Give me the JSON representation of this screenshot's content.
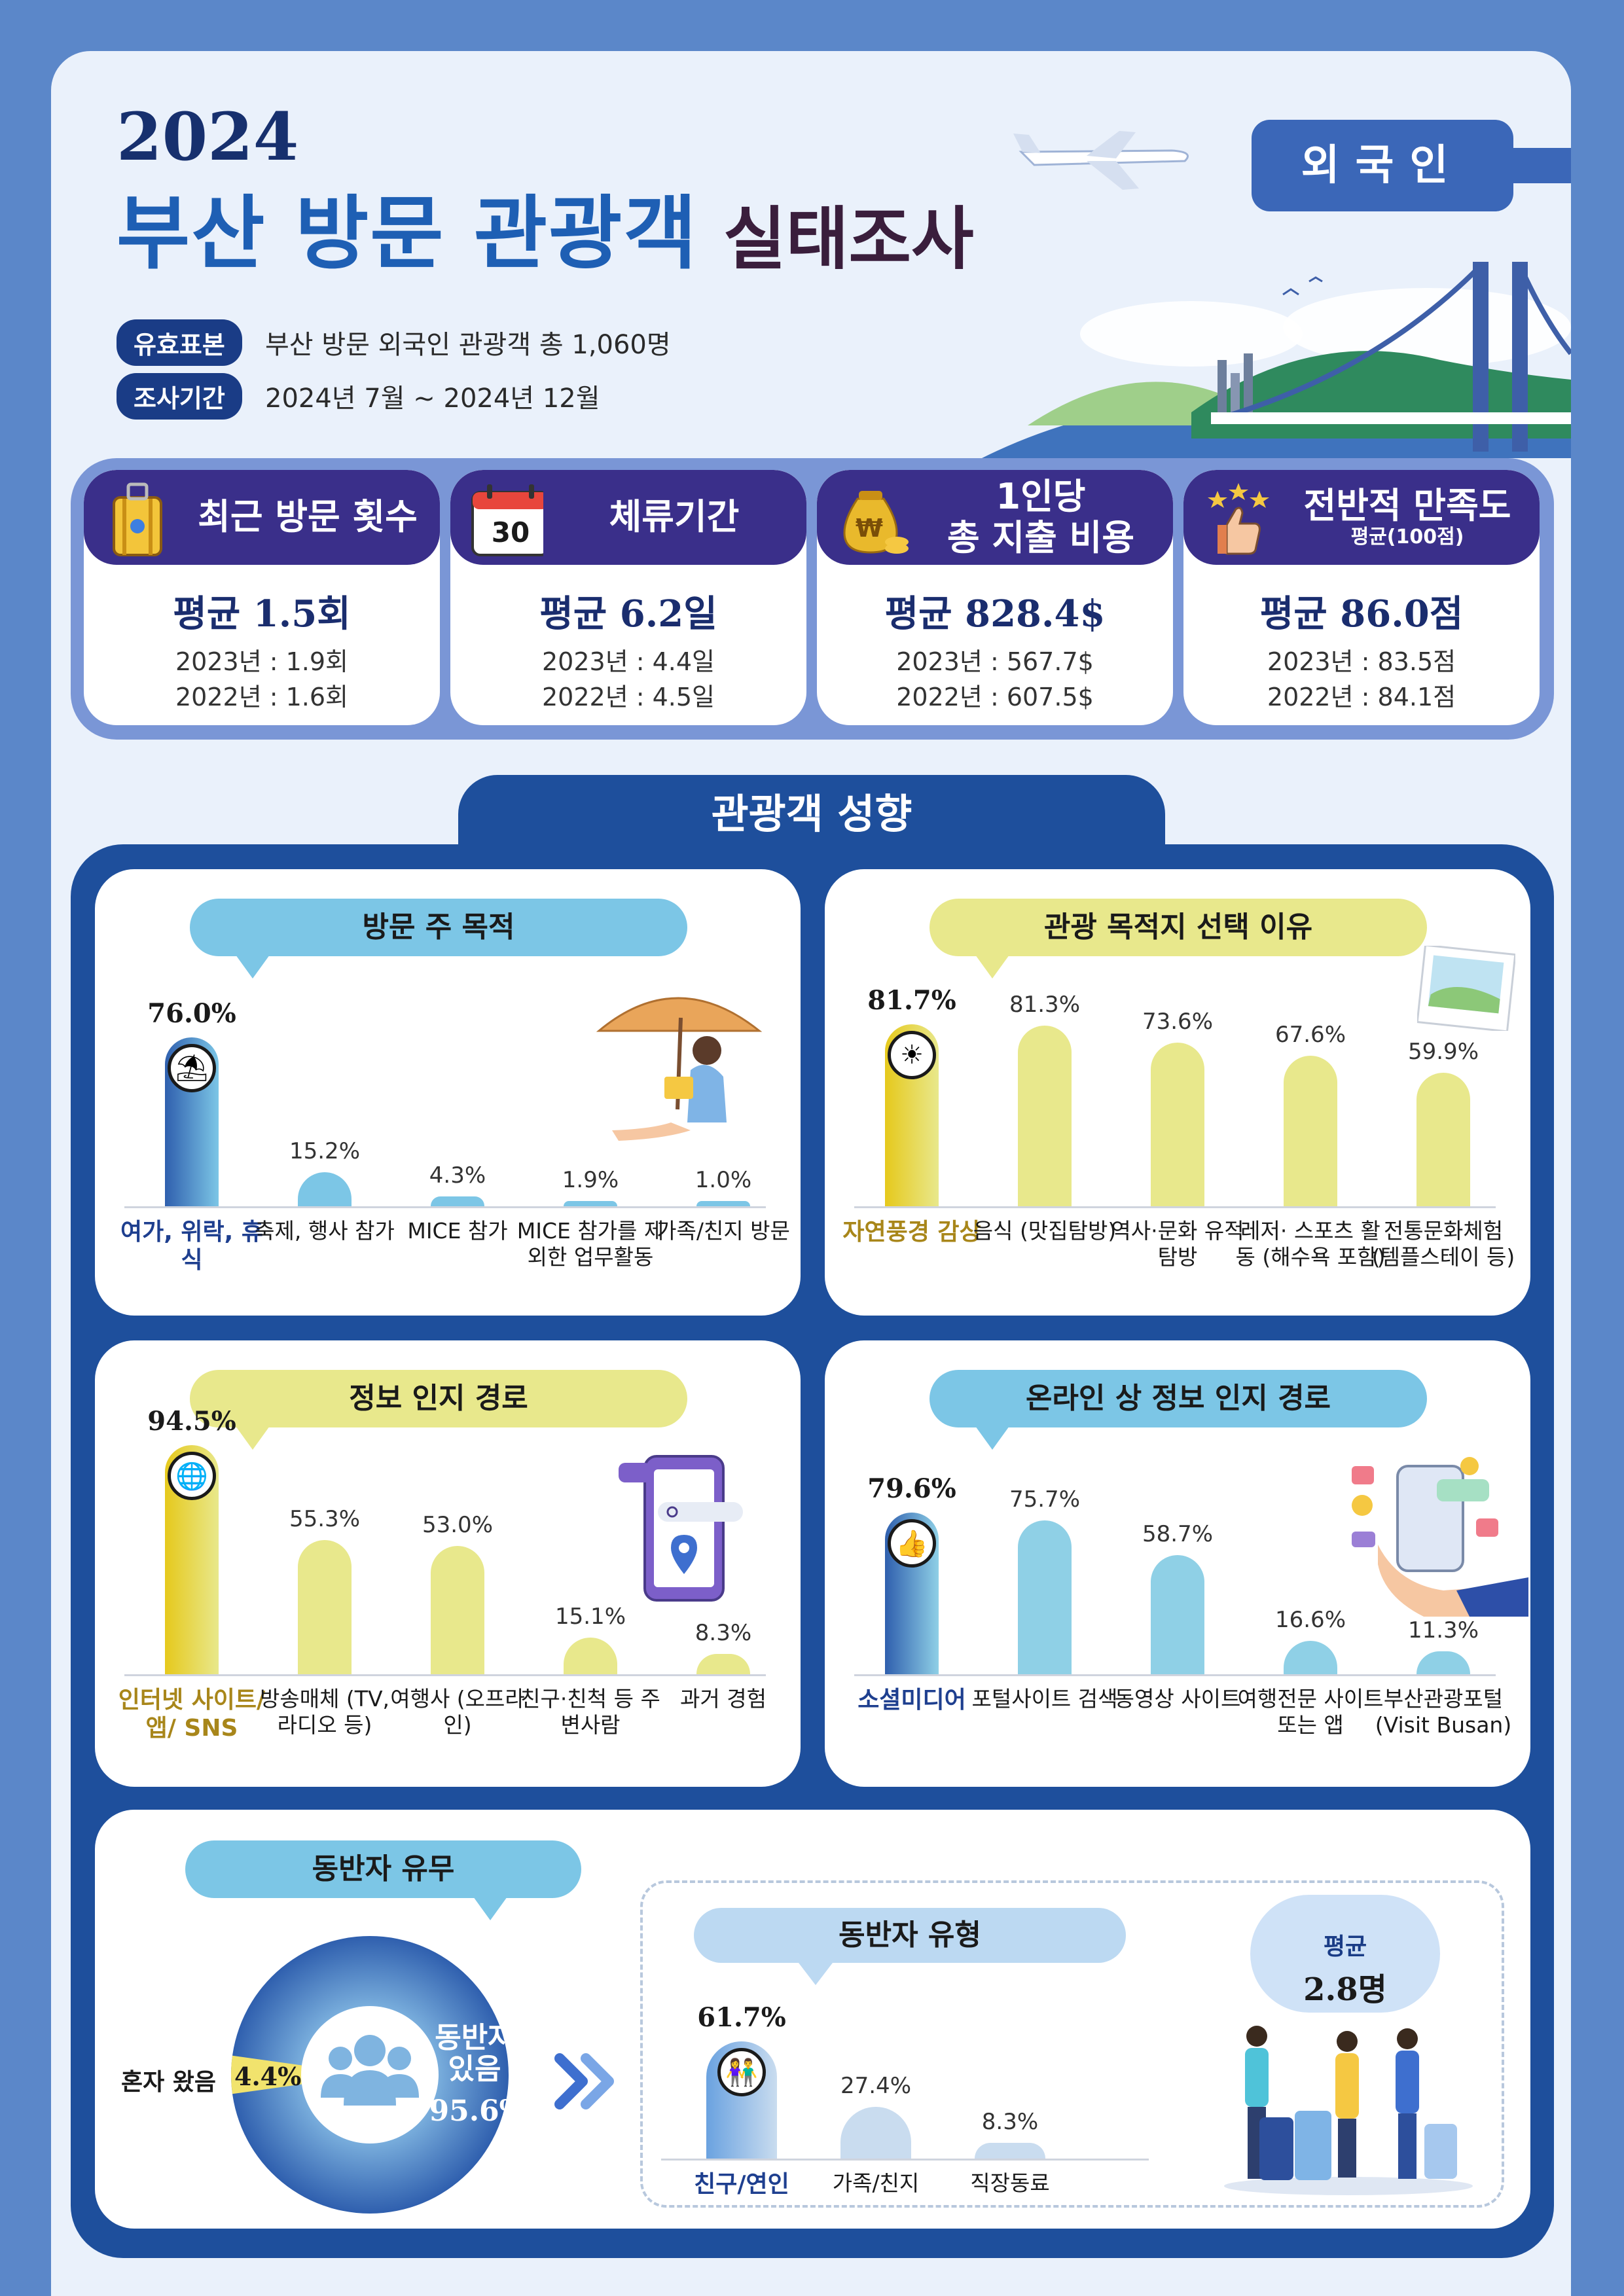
{
  "header": {
    "year": "2024",
    "title_main": "부산 방문 관광객",
    "title_sub": "실태조사",
    "sample_label": "유효표본",
    "sample_text": "부산 방문 외국인 관광객 총 1,060명",
    "period_label": "조사기간",
    "period_text": "2024년 7월 ~ 2024년 12월",
    "badge": "외국인"
  },
  "stats": [
    {
      "label": "최근 방문 횟수",
      "sublabel": "",
      "avg": "평균  1.5회",
      "prev1": "2023년 : 1.9회",
      "prev2": "2022년 : 1.6회",
      "icon": "suitcase-icon"
    },
    {
      "label": "체류기간",
      "sublabel": "",
      "avg": "평균  6.2일",
      "prev1": "2023년 : 4.4일",
      "prev2": "2022년 : 4.5일",
      "icon": "calendar-icon",
      "icon_text": "30"
    },
    {
      "label": "1인당\n총 지출 비용",
      "sublabel": "",
      "avg": "평균  828.4$",
      "prev1": "2023년 : 567.7$",
      "prev2": "2022년 : 607.5$",
      "icon": "money-bag-icon"
    },
    {
      "label": "전반적 만족도",
      "sublabel": "평균(100점)",
      "avg": "평균  86.0점",
      "prev1": "2023년 : 83.5점",
      "prev2": "2022년 : 84.1점",
      "icon": "thumbs-up-stars-icon"
    }
  ],
  "section_title": "관광객 성향",
  "chart_data": [
    {
      "type": "bar",
      "title": "방문 주 목적",
      "categories": [
        "여가, 위락, 휴식",
        "축제, 행사 참가",
        "MICE 참가",
        "MICE 참가를 제외한 업무활동",
        "가족/친지 방문"
      ],
      "values": [
        76.0,
        15.2,
        4.3,
        1.9,
        1.0
      ],
      "labels": [
        "76.0%",
        "15.2%",
        "4.3%",
        "1.9%",
        "1.0%"
      ],
      "color": "#7cc6e6",
      "highlight_color": "#2f5fae"
    },
    {
      "type": "bar",
      "title": "관광 목적지 선택 이유",
      "categories": [
        "자연풍경 감상",
        "음식 (맛집탐방)",
        "역사·문화 유적탐방",
        "레저· 스포츠 활동 (해수욕 포함)",
        "전통문화체험 (템플스테이 등)"
      ],
      "values": [
        81.7,
        81.3,
        73.6,
        67.6,
        59.9
      ],
      "labels": [
        "81.7%",
        "81.3%",
        "73.6%",
        "67.6%",
        "59.9%"
      ],
      "color": "#e8e88c",
      "highlight_color": "#e6c91c"
    },
    {
      "type": "bar",
      "title": "정보 인지 경로",
      "categories": [
        "인터넷 사이트/앱/ SNS",
        "방송매체 (TV, 라디오 등)",
        "여행사 (오프라인)",
        "친구·친척 등 주변사람",
        "과거 경험"
      ],
      "values": [
        94.5,
        55.3,
        53.0,
        15.1,
        8.3
      ],
      "labels": [
        "94.5%",
        "55.3%",
        "53.0%",
        "15.1%",
        "8.3%"
      ],
      "color": "#e8e88c",
      "highlight_color": "#e6c91c"
    },
    {
      "type": "bar",
      "title": "온라인 상 정보 인지 경로",
      "categories": [
        "소셜미디어",
        "포털사이트 검색",
        "동영상 사이트",
        "여행전문 사이트 또는 앱",
        "부산관광포털 (Visit Busan)"
      ],
      "values": [
        79.6,
        75.7,
        58.7,
        16.6,
        11.3
      ],
      "labels": [
        "79.6%",
        "75.7%",
        "58.7%",
        "16.6%",
        "11.3%"
      ],
      "color": "#8fd0e6",
      "highlight_color": "#2f5fae"
    },
    {
      "type": "pie",
      "title": "동반자 유무",
      "categories": [
        "혼자 왔음",
        "동반자 있음"
      ],
      "values": [
        4.4,
        95.6
      ],
      "labels": [
        "4.4%",
        "95.6%"
      ]
    },
    {
      "type": "bar",
      "title": "동반자 유형",
      "categories": [
        "친구/연인",
        "가족/친지",
        "직장동료"
      ],
      "values": [
        61.7,
        27.4,
        8.3
      ],
      "labels": [
        "61.7%",
        "27.4%",
        "8.3%"
      ],
      "color": "#c9dcef",
      "highlight_color": "#6aa2e0"
    }
  ],
  "companion": {
    "alone_label": "혼자 왔음",
    "alone_value": "4.4%",
    "with_label": "동반자\n있음",
    "with_value": "95.6%",
    "avg_label": "평균",
    "avg_value": "2.8명"
  }
}
